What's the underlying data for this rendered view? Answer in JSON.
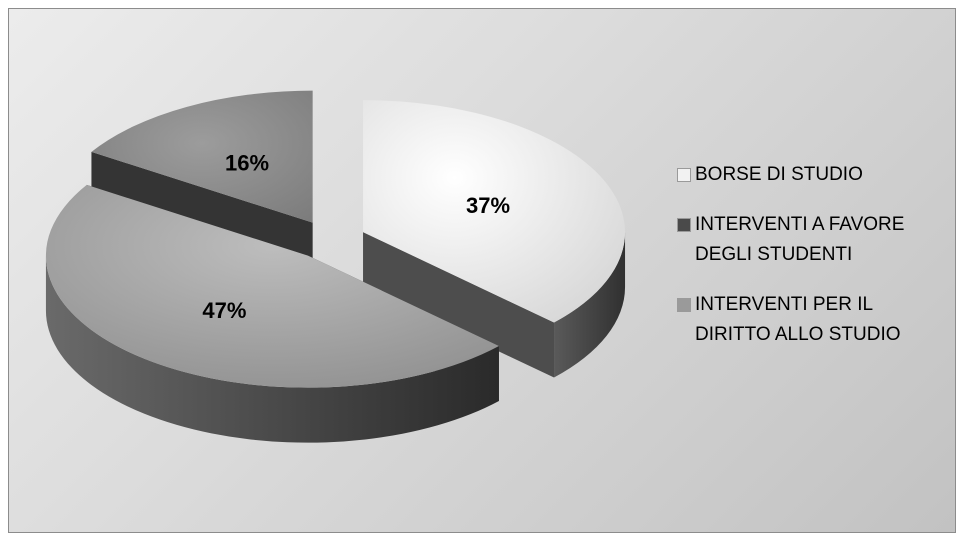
{
  "chart_data": {
    "type": "pie",
    "style": "3d-exploded",
    "categories": [
      "BORSE DI STUDIO",
      "INTERVENTI A FAVORE DEGLI STUDENTI",
      "INTERVENTI PER IL DIRITTO ALLO STUDIO"
    ],
    "values": [
      37,
      47,
      16
    ],
    "labels": [
      "37%",
      "47%",
      "16%"
    ],
    "legend_position": "right",
    "colors": {
      "slice_top": [
        "#ebebeb",
        "#a0a0a0",
        "#8a8a8a"
      ],
      "slice_side": [
        "#4d4d4d",
        "#3e3e3e",
        "#343434"
      ],
      "legend_swatch": [
        "#f2f2f2",
        "#4a4a4a",
        "#9a9a9a"
      ]
    }
  },
  "legend": {
    "items": [
      {
        "label": "BORSE DI STUDIO"
      },
      {
        "label": "INTERVENTI A FAVORE DEGLI STUDENTI"
      },
      {
        "label": "INTERVENTI PER IL DIRITTO ALLO STUDIO"
      }
    ]
  }
}
